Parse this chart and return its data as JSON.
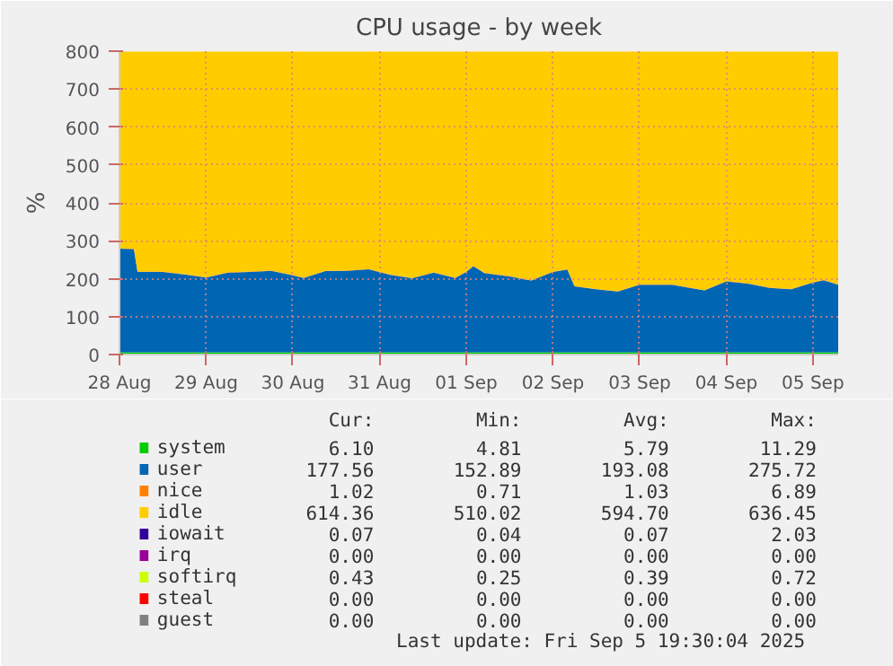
{
  "chart_data": {
    "type": "area",
    "stacked": true,
    "title": "CPU usage - by week",
    "ylabel": "%",
    "x": [
      "2025-08-28T00:00",
      "2025-08-28T04:00",
      "2025-08-28T05:00",
      "2025-08-28T12:00",
      "2025-08-28T18:00",
      "2025-08-29T00:00",
      "2025-08-29T06:00",
      "2025-08-29T12:00",
      "2025-08-29T18:00",
      "2025-08-30T00:00",
      "2025-08-30T03:00",
      "2025-08-30T09:00",
      "2025-08-30T15:00",
      "2025-08-30T21:00",
      "2025-08-31T03:00",
      "2025-08-31T09:00",
      "2025-08-31T15:00",
      "2025-08-31T21:00",
      "2025-09-01T00:00",
      "2025-09-01T02:00",
      "2025-09-01T03:30",
      "2025-09-01T05:00",
      "2025-09-01T12:00",
      "2025-09-01T18:00",
      "2025-09-02T00:00",
      "2025-09-02T04:00",
      "2025-09-02T06:00",
      "2025-09-02T12:00",
      "2025-09-02T18:00",
      "2025-09-03T00:00",
      "2025-09-03T09:00",
      "2025-09-03T18:00",
      "2025-09-04T00:00",
      "2025-09-04T06:00",
      "2025-09-04T12:00",
      "2025-09-04T18:00",
      "2025-09-05T00:00",
      "2025-09-05T03:00",
      "2025-09-05T07:00"
    ],
    "series": [
      {
        "name": "system",
        "color": "#00cc00",
        "values": [
          6,
          6,
          6,
          6,
          6,
          6,
          6,
          6,
          6,
          6,
          6,
          6,
          6,
          6,
          6,
          6,
          6,
          6,
          6,
          6,
          null,
          6,
          6,
          6,
          6,
          6,
          6,
          6,
          6,
          6,
          6,
          6,
          6,
          6,
          6,
          6,
          6,
          6,
          6
        ]
      },
      {
        "name": "user",
        "color": "#0066b3",
        "values": [
          273,
          272,
          212,
          212,
          205,
          197,
          210,
          212,
          215,
          203,
          196,
          214,
          215,
          219,
          204,
          195,
          210,
          196,
          212,
          227,
          null,
          209,
          200,
          189,
          212,
          218,
          174,
          166,
          160,
          178,
          178,
          163,
          187,
          181,
          170,
          166,
          184,
          190,
          178
        ]
      },
      {
        "name": "nice",
        "color": "#ff8000",
        "values": [
          1,
          1,
          1,
          1,
          1,
          1,
          1,
          1,
          1,
          1,
          1,
          1,
          1,
          1,
          1,
          1,
          1,
          1,
          1,
          1,
          null,
          1,
          1,
          1,
          1,
          1,
          1,
          1,
          1,
          1,
          1,
          1,
          1,
          1,
          1,
          1,
          1,
          1,
          1
        ]
      },
      {
        "name": "idle",
        "color": "#ffcc00",
        "values": [
          519,
          520,
          580,
          580,
          587,
          595,
          582,
          580,
          577,
          589,
          596,
          578,
          577,
          573,
          588,
          597,
          582,
          596,
          580,
          565,
          null,
          583,
          592,
          603,
          580,
          574,
          618,
          626,
          632,
          614,
          614,
          629,
          605,
          611,
          622,
          626,
          608,
          602,
          614
        ]
      },
      {
        "name": "iowait",
        "color": "#330099",
        "values": [
          null,
          null,
          null,
          null,
          null,
          null,
          null,
          null,
          null,
          null,
          null,
          null,
          null,
          null,
          null,
          null,
          null,
          null,
          null,
          null,
          null,
          null,
          null,
          null,
          null,
          null,
          null,
          null,
          null,
          null,
          null,
          null,
          null,
          null,
          null,
          null,
          null,
          null,
          null
        ]
      },
      {
        "name": "irq",
        "color": "#990099",
        "values": [
          null,
          null,
          null,
          null,
          null,
          null,
          null,
          null,
          null,
          null,
          null,
          null,
          null,
          null,
          null,
          null,
          null,
          null,
          null,
          null,
          null,
          null,
          null,
          null,
          null,
          null,
          null,
          null,
          null,
          null,
          null,
          null,
          null,
          null,
          null,
          null,
          null,
          null,
          null
        ]
      },
      {
        "name": "softirq",
        "color": "#ccff00",
        "values": [
          null,
          null,
          null,
          null,
          null,
          null,
          null,
          null,
          null,
          null,
          null,
          null,
          null,
          null,
          null,
          null,
          null,
          null,
          null,
          null,
          null,
          null,
          null,
          null,
          null,
          null,
          null,
          null,
          null,
          null,
          null,
          null,
          null,
          null,
          null,
          null,
          null,
          null,
          null
        ]
      },
      {
        "name": "steal",
        "color": "#ff0000",
        "values": [
          null,
          null,
          null,
          null,
          null,
          null,
          null,
          null,
          null,
          null,
          null,
          null,
          null,
          null,
          null,
          null,
          null,
          null,
          null,
          null,
          null,
          null,
          null,
          null,
          null,
          null,
          null,
          null,
          null,
          null,
          null,
          null,
          null,
          null,
          null,
          null,
          null,
          null,
          null
        ]
      },
      {
        "name": "guest",
        "color": "#808080",
        "values": [
          null,
          null,
          null,
          null,
          null,
          null,
          null,
          null,
          null,
          null,
          null,
          null,
          null,
          null,
          null,
          null,
          null,
          null,
          null,
          null,
          null,
          null,
          null,
          null,
          null,
          null,
          null,
          null,
          null,
          null,
          null,
          null,
          null,
          null,
          null,
          null,
          null,
          null,
          null
        ]
      }
    ],
    "xlim": [
      "2025-08-28T00:00",
      "2025-09-05T07:00"
    ],
    "xticks": [
      {
        "value": "2025-08-28",
        "label": "28 Aug"
      },
      {
        "value": "2025-08-29",
        "label": "29 Aug"
      },
      {
        "value": "2025-08-30",
        "label": "30 Aug"
      },
      {
        "value": "2025-08-31",
        "label": "31 Aug"
      },
      {
        "value": "2025-09-01",
        "label": "01 Sep"
      },
      {
        "value": "2025-09-02",
        "label": "02 Sep"
      },
      {
        "value": "2025-09-03",
        "label": "03 Sep"
      },
      {
        "value": "2025-09-04",
        "label": "04 Sep"
      },
      {
        "value": "2025-09-05",
        "label": "05 Sep"
      }
    ],
    "ylim": [
      0,
      800
    ],
    "yticks": [
      0,
      100,
      200,
      300,
      400,
      500,
      600,
      700,
      800
    ],
    "grid": true,
    "legend": "bottom",
    "annotations": [
      "Cur:",
      "Min:",
      "Avg:",
      "Max:",
      "6.10",
      "4.81",
      "5.79",
      "11.29",
      "177.56",
      "152.89",
      "193.08",
      "275.72",
      "1.02",
      "0.71",
      "1.03",
      "6.89",
      "614.36",
      "510.02",
      "594.70",
      "636.45",
      "0.07",
      "0.04",
      "0.07",
      "2.03",
      "0.00",
      "0.00",
      "0.00",
      "0.00",
      "0.43",
      "0.25",
      "0.39",
      "0.72",
      "0.00",
      "0.00",
      "0.00",
      "0.00",
      "0.00",
      "0.00",
      "0.00",
      "0.00",
      "Last update: Fri Sep  5 19:30:04 2025"
    ]
  }
}
